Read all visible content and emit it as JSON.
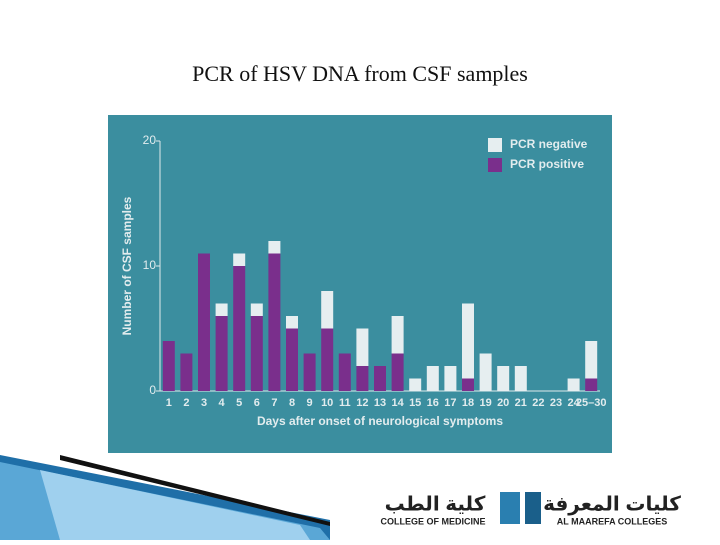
{
  "chart_data": {
    "type": "bar",
    "stacked": true,
    "title": "PCR of HSV DNA from CSF samples",
    "x_label": "Days after onset of neurological symptoms",
    "y_label": "Number of CSF samples",
    "categories": [
      "1",
      "2",
      "3",
      "4",
      "5",
      "6",
      "7",
      "8",
      "9",
      "10",
      "11",
      "12",
      "13",
      "14",
      "15",
      "16",
      "17",
      "18",
      "19",
      "20",
      "21",
      "22",
      "23",
      "24",
      "25–30"
    ],
    "series": [
      {
        "name": "PCR positive",
        "color": "#7a2f8c",
        "values": [
          4,
          3,
          11,
          6,
          10,
          6,
          11,
          5,
          3,
          5,
          3,
          2,
          2,
          3,
          0,
          0,
          0,
          1,
          0,
          0,
          0,
          0,
          0,
          0,
          1
        ]
      },
      {
        "name": "PCR negative",
        "color": "#e6eef0",
        "values": [
          0,
          0,
          0,
          1,
          1,
          1,
          1,
          1,
          0,
          3,
          0,
          3,
          0,
          3,
          1,
          2,
          2,
          6,
          3,
          2,
          2,
          0,
          0,
          1,
          3
        ]
      }
    ],
    "ylim": [
      0,
      20
    ],
    "yticks": [
      0,
      10,
      20
    ],
    "legend": "upper right",
    "grid": false
  },
  "footer": {
    "medicine_arabic": "كلية الطب",
    "medicine": "COLLEGE OF MEDICINE",
    "colleges_arabic": "كليات المعرفة",
    "colleges": "AL MAAREFA COLLEGES"
  }
}
